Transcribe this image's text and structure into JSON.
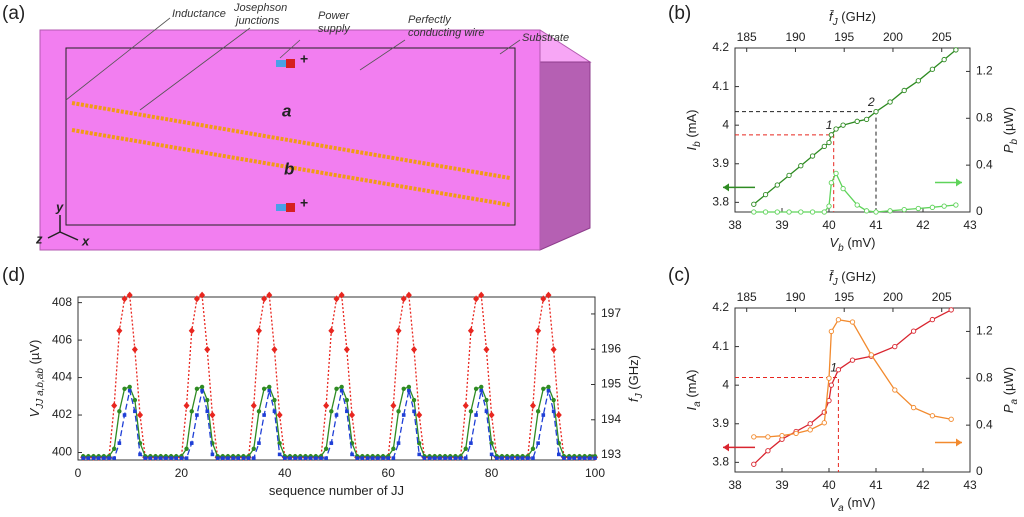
{
  "diagram": {
    "label": "(a)",
    "inductance": "Inductance",
    "junctions": [
      "Josephson",
      "junctions"
    ],
    "power": [
      "Power",
      "supply"
    ],
    "wire": [
      "Perfectly",
      "conducting wire"
    ],
    "substrate": "Substrate",
    "line_a": "a",
    "line_b": "b",
    "axes": [
      "y",
      "z",
      "x"
    ]
  },
  "chart_data": [
    {
      "type": "line",
      "label": "(b)",
      "xlabel": [
        "V",
        "b",
        " (mV)"
      ],
      "ylabel": [
        "I",
        "b",
        " (mA)"
      ],
      "y2label": [
        "P",
        "b",
        " (µW)"
      ],
      "x2label": [
        "f̄",
        "J",
        " (GHz)"
      ],
      "xlim": [
        38,
        43
      ],
      "xticks": [
        38,
        39,
        40,
        41,
        42,
        43
      ],
      "x2lim": [
        183.8,
        207.9
      ],
      "x2ticks": [
        185,
        190,
        195,
        200,
        205
      ],
      "ylim": [
        3.775,
        4.2
      ],
      "yticks": [
        3.8,
        3.9,
        4,
        4.1,
        4.2
      ],
      "y2lim": [
        0,
        1.4
      ],
      "y2ticks": [
        0,
        0.4,
        0.8,
        1.2
      ],
      "x": [
        38.4,
        38.65,
        38.9,
        39.15,
        39.4,
        39.65,
        39.9,
        40.0,
        40.05,
        40.15,
        40.3,
        40.6,
        40.8,
        41.0,
        41.3,
        41.6,
        41.9,
        42.2,
        42.45,
        42.7
      ],
      "series": [
        {
          "color": "#2e8b22",
          "line_style": "solid",
          "marker": "circle-open",
          "values": [
            3.795,
            3.82,
            3.845,
            3.87,
            3.895,
            3.92,
            3.945,
            3.955,
            3.975,
            3.99,
            4.0,
            4.01,
            4.015,
            4.035,
            4.06,
            4.09,
            4.115,
            4.145,
            4.17,
            4.195
          ]
        },
        {
          "color": "#5fd35a",
          "line_style": "solid",
          "marker": "circle-open",
          "axis": "y2",
          "values": [
            0,
            0,
            0,
            0,
            0,
            0,
            0,
            0.05,
            0.25,
            0.33,
            0.2,
            0.06,
            0.01,
            0,
            0.01,
            0.02,
            0.03,
            0.04,
            0.05,
            0.06
          ]
        }
      ],
      "markers": [
        {
          "label": "1",
          "x": 40.1,
          "y": 3.975,
          "color": "#e8261f"
        },
        {
          "label": "2",
          "x": 41.0,
          "y": 4.035,
          "color": "#222222"
        }
      ]
    },
    {
      "type": "line",
      "label": "(c)",
      "xlabel": [
        "V",
        "a",
        " (mV)"
      ],
      "ylabel": [
        "I",
        "a",
        " (mA)"
      ],
      "y2label": [
        "P",
        "a",
        " (µW)"
      ],
      "x2label": [
        "f̄",
        "J",
        " (GHz)"
      ],
      "xlim": [
        38,
        43
      ],
      "xticks": [
        38,
        39,
        40,
        41,
        42,
        43
      ],
      "x2lim": [
        183.8,
        207.9
      ],
      "x2ticks": [
        185,
        190,
        195,
        200,
        205
      ],
      "ylim": [
        3.775,
        4.2
      ],
      "yticks": [
        3.8,
        3.9,
        4,
        4.1,
        4.2
      ],
      "y2lim": [
        0,
        1.4
      ],
      "y2ticks": [
        0,
        0.4,
        0.8,
        1.2
      ],
      "x": [
        38.4,
        38.7,
        39.0,
        39.3,
        39.6,
        39.9,
        40.0,
        40.05,
        40.2,
        40.5,
        40.9,
        41.4,
        41.8,
        42.2,
        42.6
      ],
      "series": [
        {
          "color": "#d9252f",
          "line_style": "solid",
          "marker": "circle-open",
          "values": [
            3.795,
            3.83,
            3.86,
            3.88,
            3.9,
            3.93,
            3.96,
            4.0,
            4.04,
            4.065,
            4.075,
            4.1,
            4.14,
            4.17,
            4.195
          ]
        },
        {
          "color": "#f28a2e",
          "line_style": "solid",
          "marker": "circle-open",
          "axis": "y2",
          "values": [
            0.3,
            0.3,
            0.31,
            0.33,
            0.36,
            0.42,
            0.8,
            1.2,
            1.3,
            1.28,
            1.0,
            0.7,
            0.55,
            0.48,
            0.45
          ]
        }
      ],
      "markers": [
        {
          "label": "1",
          "x": 40.2,
          "y": 4.02,
          "color": "#e8261f"
        }
      ]
    },
    {
      "type": "line",
      "label": "(d)",
      "xlabel": [
        "sequence number of JJ",
        "",
        ""
      ],
      "ylabel": [
        "V",
        "JJ a,b,ab",
        " (µV)"
      ],
      "y2label": [
        "f",
        "J",
        " (GHz)"
      ],
      "xlim": [
        0,
        100
      ],
      "xticks": [
        0,
        20,
        40,
        60,
        80,
        100
      ],
      "ylim": [
        399.6,
        408.3
      ],
      "yticks": [
        400,
        402,
        404,
        406,
        408
      ],
      "y2lim": [
        192.86,
        197.48
      ],
      "y2ticks": [
        193,
        194,
        195,
        196,
        197
      ],
      "x": [
        1,
        2,
        3,
        4,
        5,
        6,
        7,
        8,
        9,
        10,
        11,
        12,
        13,
        14,
        15,
        16,
        17,
        18,
        19,
        20,
        21,
        22,
        23,
        24,
        25,
        26,
        27,
        28,
        29,
        30,
        31,
        32,
        33,
        34,
        35,
        36,
        37,
        38,
        39,
        40,
        41,
        42,
        43,
        44,
        45,
        46,
        47,
        48,
        49,
        50,
        51,
        52,
        53,
        54,
        55,
        56,
        57,
        58,
        59,
        60,
        61,
        62,
        63,
        64,
        65,
        66,
        67,
        68,
        69,
        70,
        71,
        72,
        73,
        74,
        75,
        76,
        77,
        78,
        79,
        80,
        81,
        82,
        83,
        84,
        85,
        86,
        87,
        88,
        89,
        90,
        91,
        92,
        93,
        94,
        95,
        96,
        97,
        98,
        99,
        100
      ],
      "series": [
        {
          "color": "#e8261f",
          "line_style": "dotted",
          "marker": "diamond",
          "values": [
            399.75,
            399.75,
            399.75,
            399.75,
            399.75,
            399.75,
            402.5,
            406.5,
            408.2,
            408.4,
            405.5,
            402,
            399.75,
            399.75,
            399.75,
            399.75,
            399.75,
            399.75,
            399.75,
            399.75,
            402.5,
            406.5,
            408.2,
            408.4,
            405.5,
            402,
            399.75,
            399.75,
            399.75,
            399.75,
            399.75,
            399.75,
            399.75,
            402.5,
            406.5,
            408.2,
            408.4,
            405.5,
            402,
            399.75,
            399.75,
            399.75,
            399.75,
            399.75,
            399.75,
            399.75,
            399.75,
            402.5,
            406.5,
            408.2,
            408.4,
            405.5,
            402,
            399.75,
            399.75,
            399.75,
            399.75,
            399.75,
            399.75,
            399.75,
            402.5,
            406.5,
            408.2,
            408.4,
            405.5,
            402,
            399.75,
            399.75,
            399.75,
            399.75,
            399.75,
            399.75,
            399.75,
            399.75,
            402.5,
            406.5,
            408.2,
            408.4,
            405.5,
            402,
            399.75,
            399.75,
            399.75,
            399.75,
            399.75,
            399.75,
            399.75,
            402.5,
            406.5,
            408.2,
            408.4,
            405.5,
            402,
            399.75,
            399.75,
            399.75,
            399.75,
            399.75,
            399.75,
            399.75
          ]
        },
        {
          "color": "#2e8b22",
          "line_style": "solid",
          "marker": "circle",
          "values": [
            399.8,
            399.8,
            399.8,
            399.8,
            399.8,
            399.8,
            400.2,
            402.2,
            403.4,
            403.5,
            402.8,
            400.5,
            399.8,
            399.8,
            399.8,
            399.8,
            399.8,
            399.8,
            399.8,
            399.8,
            400.2,
            402.2,
            403.4,
            403.5,
            402.8,
            400.5,
            399.8,
            399.8,
            399.8,
            399.8,
            399.8,
            399.8,
            399.8,
            400.2,
            402.2,
            403.4,
            403.5,
            402.8,
            400.5,
            399.8,
            399.8,
            399.8,
            399.8,
            399.8,
            399.8,
            399.8,
            399.8,
            400.2,
            402.2,
            403.4,
            403.5,
            402.8,
            400.5,
            399.8,
            399.8,
            399.8,
            399.8,
            399.8,
            399.8,
            399.8,
            400.2,
            402.2,
            403.4,
            403.5,
            402.8,
            400.5,
            399.8,
            399.8,
            399.8,
            399.8,
            399.8,
            399.8,
            399.8,
            399.8,
            400.2,
            402.2,
            403.4,
            403.5,
            402.8,
            400.5,
            399.8,
            399.8,
            399.8,
            399.8,
            399.8,
            399.8,
            399.8,
            400.2,
            402.2,
            403.4,
            403.5,
            402.8,
            400.5,
            399.8,
            399.8,
            399.8,
            399.8,
            399.8,
            399.8,
            399.8
          ]
        },
        {
          "color": "#1f3fd6",
          "line_style": "dashed",
          "marker": "square",
          "values": [
            399.7,
            399.7,
            399.7,
            399.7,
            399.7,
            399.7,
            399.7,
            400.5,
            402.0,
            403.3,
            402.2,
            399.9,
            399.7,
            399.7,
            399.7,
            399.7,
            399.7,
            399.7,
            399.7,
            399.7,
            399.7,
            400.5,
            402.0,
            403.3,
            402.2,
            399.9,
            399.7,
            399.7,
            399.7,
            399.7,
            399.7,
            399.7,
            399.7,
            399.7,
            400.5,
            402.0,
            403.3,
            402.2,
            399.9,
            399.7,
            399.7,
            399.7,
            399.7,
            399.7,
            399.7,
            399.7,
            399.7,
            399.7,
            400.5,
            402.0,
            403.3,
            402.2,
            399.9,
            399.7,
            399.7,
            399.7,
            399.7,
            399.7,
            399.7,
            399.7,
            399.7,
            400.5,
            402.0,
            403.3,
            402.2,
            399.9,
            399.7,
            399.7,
            399.7,
            399.7,
            399.7,
            399.7,
            399.7,
            399.7,
            399.7,
            400.5,
            402.0,
            403.3,
            402.2,
            399.9,
            399.7,
            399.7,
            399.7,
            399.7,
            399.7,
            399.7,
            399.7,
            399.7,
            400.5,
            402.0,
            403.3,
            402.2,
            399.9,
            399.7,
            399.7,
            399.7,
            399.7,
            399.7,
            399.7,
            399.7
          ]
        }
      ]
    }
  ]
}
